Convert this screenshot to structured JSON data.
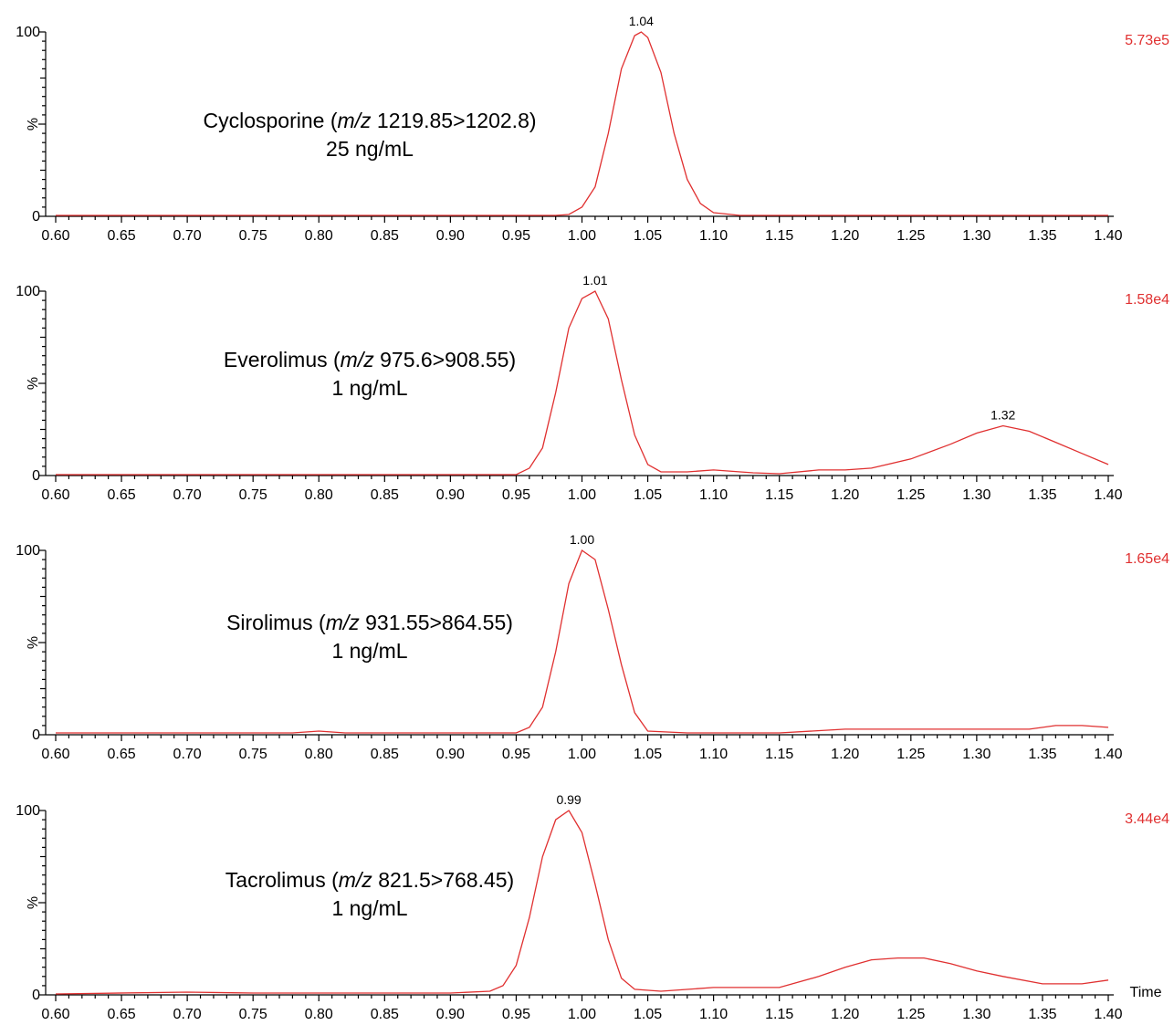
{
  "colors": {
    "trace": "#e03030",
    "intensity": "#e03030",
    "axis": "#000000"
  },
  "x_axis_label": "Time",
  "chart_data": [
    {
      "type": "line",
      "compound": "Cyclosporine",
      "mz_prefix": "m/z",
      "mz_value": "1219.85>1202.8",
      "concentration": "25 ng/mL",
      "intensity": "5.73e5",
      "ylabel": "%",
      "xlim": [
        0.6,
        1.4
      ],
      "ylim": [
        0,
        100
      ],
      "x_ticks": [
        "0.60",
        "0.65",
        "0.70",
        "0.75",
        "0.80",
        "0.85",
        "0.90",
        "0.95",
        "1.00",
        "1.05",
        "1.10",
        "1.15",
        "1.20",
        "1.25",
        "1.30",
        "1.35",
        "1.40"
      ],
      "y_ticks": [
        "0",
        "100"
      ],
      "peaks": [
        {
          "x": 1.045,
          "y": 100,
          "label": "1.04"
        }
      ],
      "x": [
        0.6,
        0.98,
        0.99,
        1.0,
        1.01,
        1.02,
        1.03,
        1.04,
        1.045,
        1.05,
        1.06,
        1.07,
        1.08,
        1.09,
        1.1,
        1.12,
        1.4
      ],
      "y": [
        0.5,
        0.5,
        1,
        5,
        16,
        45,
        80,
        98,
        100,
        97,
        78,
        45,
        20,
        7,
        2,
        0.5,
        0.5
      ]
    },
    {
      "type": "line",
      "compound": "Everolimus",
      "mz_prefix": "m/z",
      "mz_value": "975.6>908.55",
      "concentration": "1 ng/mL",
      "intensity": "1.58e4",
      "ylabel": "%",
      "xlim": [
        0.6,
        1.4
      ],
      "ylim": [
        0,
        100
      ],
      "x_ticks": [
        "0.60",
        "0.65",
        "0.70",
        "0.75",
        "0.80",
        "0.85",
        "0.90",
        "0.95",
        "1.00",
        "1.05",
        "1.10",
        "1.15",
        "1.20",
        "1.25",
        "1.30",
        "1.35",
        "1.40"
      ],
      "y_ticks": [
        "0",
        "100"
      ],
      "peaks": [
        {
          "x": 1.01,
          "y": 100,
          "label": "1.01"
        },
        {
          "x": 1.32,
          "y": 27,
          "label": "1.32"
        }
      ],
      "x": [
        0.6,
        0.95,
        0.96,
        0.97,
        0.98,
        0.99,
        1.0,
        1.01,
        1.02,
        1.03,
        1.04,
        1.05,
        1.06,
        1.08,
        1.1,
        1.13,
        1.15,
        1.18,
        1.2,
        1.22,
        1.25,
        1.28,
        1.3,
        1.32,
        1.34,
        1.36,
        1.38,
        1.4
      ],
      "y": [
        0.5,
        0.5,
        4,
        15,
        45,
        80,
        96,
        100,
        85,
        52,
        22,
        6,
        2,
        2,
        3,
        1.5,
        1,
        3,
        3,
        4,
        9,
        17,
        23,
        27,
        24,
        18,
        12,
        6
      ]
    },
    {
      "type": "line",
      "compound": "Sirolimus",
      "mz_prefix": "m/z",
      "mz_value": "931.55>864.55",
      "concentration": "1 ng/mL",
      "intensity": "1.65e4",
      "ylabel": "%",
      "xlim": [
        0.6,
        1.4
      ],
      "ylim": [
        0,
        100
      ],
      "x_ticks": [
        "0.60",
        "0.65",
        "0.70",
        "0.75",
        "0.80",
        "0.85",
        "0.90",
        "0.95",
        "1.00",
        "1.05",
        "1.10",
        "1.15",
        "1.20",
        "1.25",
        "1.30",
        "1.35",
        "1.40"
      ],
      "y_ticks": [
        "0",
        "100"
      ],
      "peaks": [
        {
          "x": 1.0,
          "y": 100,
          "label": "1.00"
        }
      ],
      "x": [
        0.6,
        0.78,
        0.8,
        0.82,
        0.95,
        0.96,
        0.97,
        0.98,
        0.99,
        1.0,
        1.01,
        1.02,
        1.03,
        1.04,
        1.05,
        1.08,
        1.15,
        1.2,
        1.25,
        1.3,
        1.34,
        1.36,
        1.38,
        1.4
      ],
      "y": [
        1,
        1,
        2,
        1,
        1,
        4,
        15,
        45,
        82,
        100,
        95,
        68,
        38,
        12,
        2,
        1,
        1,
        3,
        3,
        3,
        3,
        5,
        5,
        4
      ]
    },
    {
      "type": "line",
      "compound": "Tacrolimus",
      "mz_prefix": "m/z",
      "mz_value": "821.5>768.45",
      "concentration": "1 ng/mL",
      "intensity": "3.44e4",
      "ylabel": "%",
      "xlim": [
        0.6,
        1.4
      ],
      "ylim": [
        0,
        100
      ],
      "x_ticks": [
        "0.60",
        "0.65",
        "0.70",
        "0.75",
        "0.80",
        "0.85",
        "0.90",
        "0.95",
        "1.00",
        "1.05",
        "1.10",
        "1.15",
        "1.20",
        "1.25",
        "1.30",
        "1.35",
        "1.40"
      ],
      "y_ticks": [
        "0",
        "100"
      ],
      "peaks": [
        {
          "x": 0.99,
          "y": 100,
          "label": "0.99"
        }
      ],
      "x": [
        0.6,
        0.7,
        0.75,
        0.8,
        0.9,
        0.93,
        0.94,
        0.95,
        0.96,
        0.97,
        0.98,
        0.99,
        1.0,
        1.01,
        1.02,
        1.03,
        1.04,
        1.06,
        1.1,
        1.15,
        1.18,
        1.2,
        1.22,
        1.24,
        1.26,
        1.28,
        1.3,
        1.32,
        1.35,
        1.38,
        1.4
      ],
      "y": [
        0.5,
        1.5,
        1,
        1,
        1,
        2,
        5,
        16,
        42,
        75,
        95,
        100,
        88,
        60,
        30,
        9,
        3,
        2,
        4,
        4,
        10,
        15,
        19,
        20,
        20,
        17,
        13,
        10,
        6,
        6,
        8
      ]
    }
  ]
}
